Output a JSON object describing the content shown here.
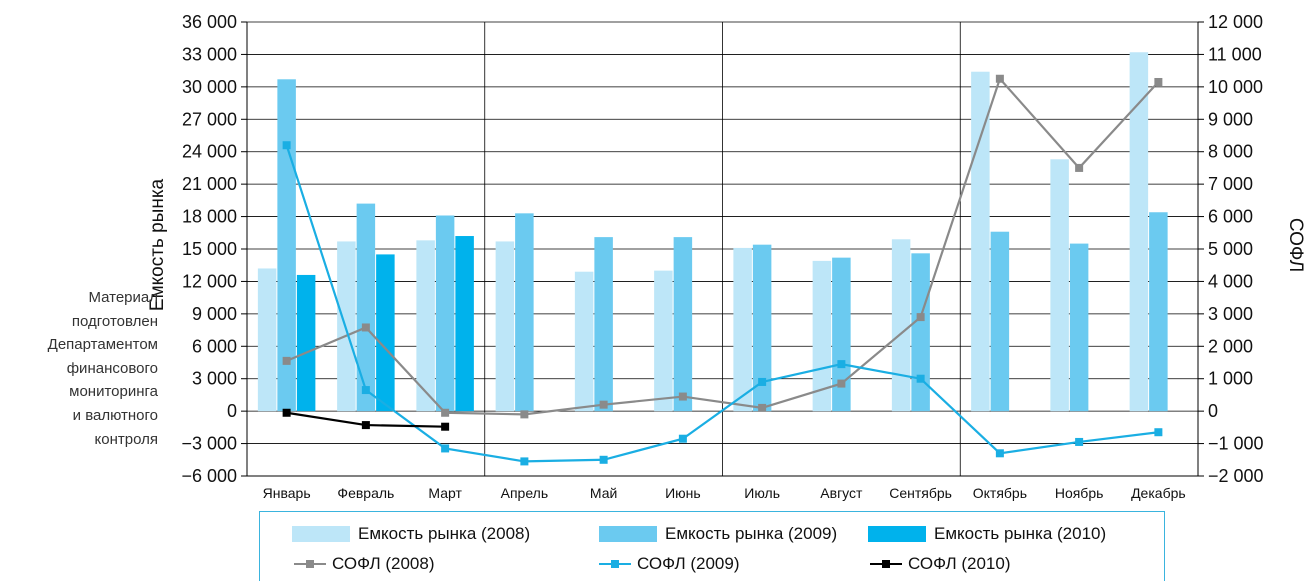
{
  "note": [
    "Материал",
    "подготовлен",
    "Департаментом",
    "финансового",
    "мониторинга",
    "и валютного",
    "контроля"
  ],
  "colors": {
    "bar2008": "#bde6f8",
    "bar2009": "#6bcaf0",
    "bar2010": "#00b2ec",
    "line2008": "#8a8a8a",
    "line2009": "#1aaee3",
    "line2010": "#000000",
    "legendBorder": "#3ab4de"
  },
  "chart_data": {
    "type": "bar+line",
    "categories": [
      "Январь",
      "Февраль",
      "Март",
      "Апрель",
      "Май",
      "Июнь",
      "Июль",
      "Август",
      "Сентябрь",
      "Октябрь",
      "Ноябрь",
      "Декабрь"
    ],
    "ylabel": "Емкость рынка",
    "y2label": "СОФЛ",
    "ylim": [
      -6000,
      36000
    ],
    "y2lim": [
      -2000,
      12000
    ],
    "yticks": [
      "−6 000",
      "−3 000",
      "0",
      "3 000",
      "6 000",
      "9 000",
      "12 000",
      "15 000",
      "18 000",
      "21 000",
      "24 000",
      "27 000",
      "30 000",
      "33 000",
      "36 000"
    ],
    "y2ticks": [
      "−2 000",
      "−1 000",
      "0",
      "1 000",
      "2 000",
      "3 000",
      "4 000",
      "5 000",
      "6 000",
      "7 000",
      "8 000",
      "9 000",
      "10 000",
      "11 000",
      "12 000"
    ],
    "grid": true,
    "series": [
      {
        "name": "Емкость рынка (2008)",
        "kind": "bar",
        "axis": "left",
        "values": [
          13200,
          15700,
          15800,
          15700,
          12900,
          13000,
          15100,
          13900,
          15900,
          31400,
          23300,
          33200
        ]
      },
      {
        "name": "Емкость рынка (2009)",
        "kind": "bar",
        "axis": "left",
        "values": [
          30700,
          19200,
          18100,
          18300,
          16100,
          16100,
          15400,
          14200,
          14600,
          16600,
          15500,
          18400
        ]
      },
      {
        "name": "Емкость рынка (2010)",
        "kind": "bar",
        "axis": "left",
        "values": [
          12600,
          14500,
          16200,
          null,
          null,
          null,
          null,
          null,
          null,
          null,
          null,
          null
        ]
      },
      {
        "name": "СОФЛ (2008)",
        "kind": "line",
        "axis": "right",
        "values": [
          1550,
          2580,
          -50,
          -100,
          200,
          450,
          100,
          850,
          2900,
          10250,
          7500,
          10150
        ]
      },
      {
        "name": "СОФЛ (2009)",
        "kind": "line",
        "axis": "right",
        "values": [
          8200,
          650,
          -1150,
          -1550,
          -1500,
          -850,
          900,
          1450,
          1000,
          -1300,
          -950,
          -650
        ]
      },
      {
        "name": "СОФЛ (2010)",
        "kind": "line",
        "axis": "right",
        "values": [
          -50,
          -430,
          -480,
          null,
          null,
          null,
          null,
          null,
          null,
          null,
          null,
          null
        ]
      }
    ]
  }
}
